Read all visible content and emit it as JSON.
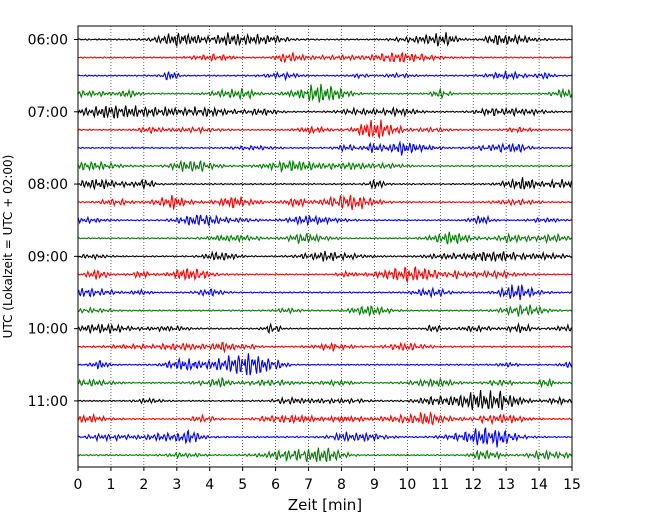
{
  "chart_data": {
    "type": "line",
    "title": "",
    "xlabel": "Zeit  [min]",
    "ylabel": "UTC (Lokalzeit = UTC + 02:00)",
    "xlim": [
      0,
      15
    ],
    "x_ticks": [
      0,
      1,
      2,
      3,
      4,
      5,
      6,
      7,
      8,
      9,
      10,
      11,
      12,
      13,
      14,
      15
    ],
    "y_tick_labels": [
      "06:00",
      "07:00",
      "08:00",
      "09:00",
      "10:00",
      "11:00"
    ],
    "trace_interval_minutes": 15,
    "start_time": "06:00",
    "trace_count": 24,
    "colors": [
      "#000000",
      "#ff0000",
      "#0000ff",
      "#007f00"
    ],
    "grid": "vertical dotted at each minute",
    "legend": "none"
  }
}
